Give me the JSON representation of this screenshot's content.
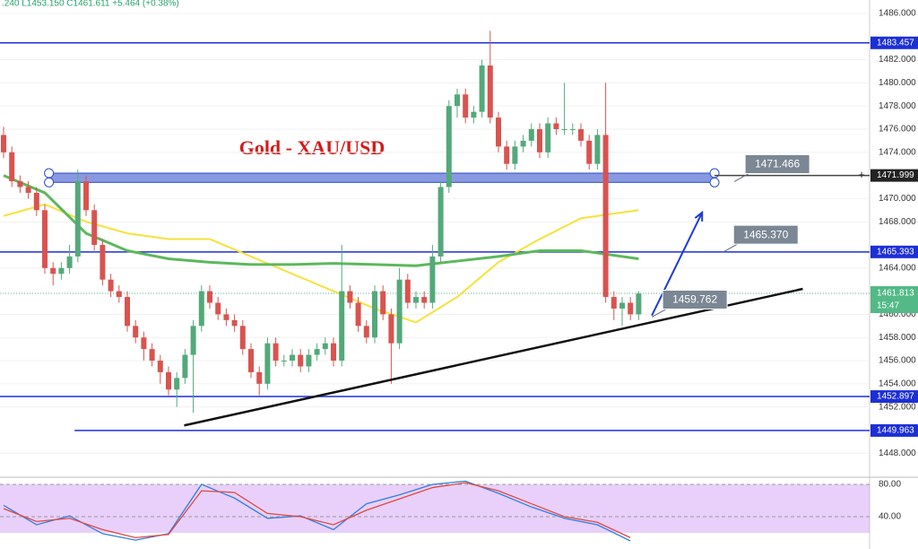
{
  "chart_data": {
    "type": "candlestick",
    "header": ".240  L1453.150  C1461.611  +5.464 (+0.38%)",
    "title": "Gold - XAU/USD",
    "ylim": [
      1446.08,
      1487.16
    ],
    "yticks": [
      {
        "value": 1486,
        "label": "1486.000"
      },
      {
        "value": 1482,
        "label": "1482.000"
      },
      {
        "value": 1480,
        "label": "1480.000"
      },
      {
        "value": 1478,
        "label": "1478.000"
      },
      {
        "value": 1476,
        "label": "1476.000"
      },
      {
        "value": 1474,
        "label": "1474.000"
      },
      {
        "value": 1470,
        "label": "1470.000"
      },
      {
        "value": 1468,
        "label": "1468.000"
      },
      {
        "value": 1464,
        "label": "1464.000"
      },
      {
        "value": 1460,
        "label": "1460.000"
      },
      {
        "value": 1458,
        "label": "1458.000"
      },
      {
        "value": 1456,
        "label": "1456.000"
      },
      {
        "value": 1454,
        "label": "1454.000"
      },
      {
        "value": 1452,
        "label": "1452.000"
      },
      {
        "value": 1448,
        "label": "1448.000"
      }
    ],
    "up_color": "#53a97a",
    "down_color": "#d9534f",
    "candles": [
      [
        1475.5,
        1476.2,
        1473.5,
        1474
      ],
      [
        1474,
        1474.5,
        1471,
        1471.5
      ],
      [
        1471.5,
        1472,
        1470.5,
        1471
      ],
      [
        1471,
        1471.5,
        1470,
        1470.5
      ],
      [
        1470.5,
        1471,
        1468.5,
        1469
      ],
      [
        1469,
        1469.5,
        1463.5,
        1464
      ],
      [
        1464,
        1464.5,
        1462.5,
        1463.5
      ],
      [
        1463.5,
        1464.5,
        1463,
        1464
      ],
      [
        1464,
        1466,
        1463.5,
        1465
      ],
      [
        1465,
        1472.5,
        1464.5,
        1471.5
      ],
      [
        1471.5,
        1472,
        1468.5,
        1469
      ],
      [
        1469,
        1469.5,
        1465.5,
        1466
      ],
      [
        1466,
        1466.5,
        1462.5,
        1463
      ],
      [
        1463,
        1463.5,
        1461.5,
        1462
      ],
      [
        1462,
        1462.5,
        1461,
        1461.5
      ],
      [
        1461.5,
        1462,
        1458.5,
        1459
      ],
      [
        1459,
        1459.5,
        1457.5,
        1458
      ],
      [
        1458,
        1458.5,
        1456,
        1457
      ],
      [
        1457,
        1457.5,
        1455.5,
        1456
      ],
      [
        1456,
        1456.5,
        1454,
        1455
      ],
      [
        1455,
        1455.5,
        1453,
        1453.5
      ],
      [
        1453.5,
        1455,
        1452,
        1454.5
      ],
      [
        1454.5,
        1457,
        1454,
        1456.5
      ],
      [
        1456.5,
        1459.5,
        1451.5,
        1459
      ],
      [
        1459,
        1462.5,
        1458.5,
        1462
      ],
      [
        1462,
        1462.5,
        1460.5,
        1461
      ],
      [
        1461,
        1461.5,
        1459.5,
        1460
      ],
      [
        1460,
        1460.5,
        1459,
        1459.5
      ],
      [
        1459.5,
        1460,
        1458.5,
        1459
      ],
      [
        1459,
        1459.5,
        1456.5,
        1457
      ],
      [
        1457,
        1457.5,
        1454.5,
        1455
      ],
      [
        1455,
        1455.5,
        1453,
        1454
      ],
      [
        1454,
        1458,
        1453.5,
        1457.5
      ],
      [
        1457.5,
        1458,
        1455.5,
        1456
      ],
      [
        1456,
        1456.5,
        1455.5,
        1456
      ],
      [
        1456,
        1457,
        1455.5,
        1456.5
      ],
      [
        1456.5,
        1457,
        1455,
        1455.5
      ],
      [
        1455.5,
        1457,
        1455,
        1456.5
      ],
      [
        1456.5,
        1457.5,
        1456,
        1457
      ],
      [
        1457,
        1458,
        1456.5,
        1457.5
      ],
      [
        1457.5,
        1458,
        1455.5,
        1456
      ],
      [
        1456,
        1466,
        1455.5,
        1462
      ],
      [
        1462,
        1462.5,
        1460.5,
        1461
      ],
      [
        1461,
        1461.5,
        1458.5,
        1459
      ],
      [
        1459,
        1459.5,
        1457.5,
        1458
      ],
      [
        1458,
        1462.5,
        1457.5,
        1462
      ],
      [
        1462,
        1462.5,
        1459.5,
        1460
      ],
      [
        1460,
        1460.5,
        1454,
        1457.5
      ],
      [
        1457.5,
        1464,
        1457,
        1463
      ],
      [
        1463,
        1463.5,
        1460.5,
        1461
      ],
      [
        1461,
        1462,
        1460.5,
        1461.5
      ],
      [
        1461.5,
        1462,
        1460.5,
        1461
      ],
      [
        1461,
        1466,
        1460.5,
        1465
      ],
      [
        1465,
        1471.5,
        1464.5,
        1471
      ],
      [
        1471,
        1478.5,
        1470.5,
        1478
      ],
      [
        1478,
        1479.5,
        1477,
        1479
      ],
      [
        1479,
        1479.5,
        1476.5,
        1477
      ],
      [
        1477,
        1478,
        1476.5,
        1477.5
      ],
      [
        1477.5,
        1482,
        1477,
        1481.5
      ],
      [
        1481.5,
        1484.5,
        1476.5,
        1477
      ],
      [
        1477,
        1477.5,
        1474,
        1474.5
      ],
      [
        1474.5,
        1475,
        1472.5,
        1473
      ],
      [
        1473,
        1475,
        1472.5,
        1474.5
      ],
      [
        1474.5,
        1475.5,
        1474,
        1475
      ],
      [
        1475,
        1476.5,
        1474.5,
        1476
      ],
      [
        1476,
        1476.5,
        1473.5,
        1474
      ],
      [
        1474,
        1477,
        1473.5,
        1476.5
      ],
      [
        1476.5,
        1477,
        1475.5,
        1476
      ],
      [
        1476,
        1480,
        1475.5,
        1476
      ],
      [
        1476,
        1476.5,
        1475.5,
        1476
      ],
      [
        1476,
        1476.5,
        1474.5,
        1475
      ],
      [
        1475,
        1475.5,
        1472.5,
        1473
      ],
      [
        1473,
        1476,
        1472.5,
        1475.5
      ],
      [
        1475.5,
        1480,
        1461,
        1461.5
      ],
      [
        1461.5,
        1462,
        1459.5,
        1460.5
      ],
      [
        1460.5,
        1461.5,
        1459,
        1461
      ],
      [
        1461,
        1461.5,
        1459.5,
        1460
      ],
      [
        1460,
        1462,
        1459.5,
        1461.8
      ]
    ],
    "series": [
      {
        "color": "#f5e23a",
        "x": [
          0,
          5,
          10,
          15,
          20,
          25,
          30,
          35,
          40,
          45,
          50,
          55,
          60,
          65,
          70,
          77
        ],
        "values": [
          1468.5,
          1469.5,
          1468,
          1467,
          1466.5,
          1466.5,
          1465,
          1463.5,
          1462,
          1460.5,
          1459.3,
          1461.5,
          1464.5,
          1466.5,
          1468.3,
          1469
        ]
      },
      {
        "color": "#5cb85c",
        "x": [
          0,
          5,
          10,
          15,
          20,
          25,
          30,
          35,
          40,
          45,
          50,
          55,
          60,
          65,
          70,
          77
        ],
        "values": [
          1472,
          1470.5,
          1467,
          1465.5,
          1464.8,
          1464.5,
          1464.3,
          1464.3,
          1464.4,
          1464.3,
          1464.2,
          1464.6,
          1465,
          1465.5,
          1465.5,
          1464.8
        ]
      }
    ],
    "lines": [
      {
        "value": 1483.457,
        "label": "1483.457",
        "from": -1
      },
      {
        "value": 1465.393,
        "label": "1465.393",
        "from": -1
      },
      {
        "value": 1452.897,
        "label": "1452.897",
        "from": -1
      },
      {
        "value": 1449.963,
        "label": "1449.963",
        "from": 8.6
      }
    ],
    "line_color": "#1c2fd6",
    "crosshair": {
      "value": 1471.999,
      "label": "1471.999"
    },
    "current": {
      "value": 1461.813,
      "label": "1461.813",
      "timer": "15:47",
      "color": "#53b987"
    },
    "zone": {
      "from": 5.5,
      "to": 86.2,
      "low": 1471.4,
      "high": 1472.2
    },
    "trendline": {
      "x": [
        21.9,
        96.9
      ],
      "y": [
        1450.4,
        1462.2
      ]
    },
    "arrow": {
      "x": [
        78.6,
        84.7
      ],
      "y": [
        1459.9,
        1468.8
      ]
    },
    "callouts": [
      {
        "value": 1471.466,
        "label": "1471.466",
        "x": 88.6
      },
      {
        "value": 1465.37,
        "label": "1465.370",
        "x": 87.2
      },
      {
        "value": 1459.762,
        "label": "1459.762",
        "x": 78.6
      }
    ],
    "oscillator": {
      "ylim": [
        0,
        85.5
      ],
      "yticks": [
        {
          "value": 80,
          "label": "80.00"
        },
        {
          "value": 40,
          "label": "40.00"
        }
      ],
      "band": [
        20,
        80
      ],
      "x": [
        0,
        4,
        8,
        12,
        16,
        20,
        24,
        28,
        32,
        36,
        40,
        44,
        48,
        52,
        56,
        60,
        64,
        68,
        72,
        76
      ],
      "series": [
        {
          "color": "#2f7fe0",
          "values": [
            54,
            30,
            41,
            19,
            11,
            19,
            80,
            63,
            38,
            41,
            24,
            56,
            67,
            80,
            84,
            69,
            52,
            38,
            30,
            10
          ]
        },
        {
          "color": "#e0483f",
          "values": [
            50,
            34,
            38,
            24,
            14,
            18,
            72,
            70,
            44,
            40,
            30,
            48,
            62,
            76,
            82,
            72,
            56,
            40,
            33,
            14
          ]
        }
      ]
    }
  }
}
